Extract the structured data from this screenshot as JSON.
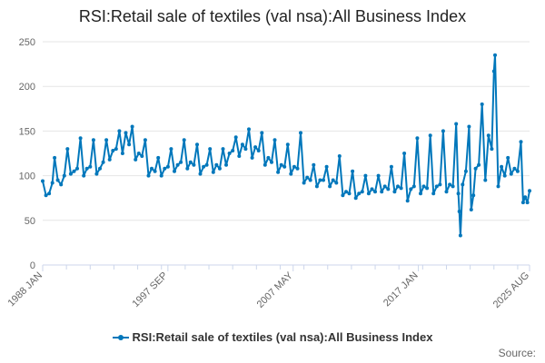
{
  "colors": {
    "series": "#0077BB",
    "grid": "#E6E6E6",
    "axis": "#CCD6EB",
    "text": "#666666"
  },
  "source_label": "Source:",
  "chart_data": {
    "type": "line",
    "title": "RSI:Retail sale of textiles (val nsa):All Business Index",
    "xlabel": "",
    "ylabel": "",
    "xlim": [
      "1988 JAN",
      "2025 AUG"
    ],
    "ylim": [
      0,
      250
    ],
    "y_ticks": [
      0,
      50,
      100,
      150,
      200,
      250
    ],
    "x_tick_labels": [
      "1988 JAN",
      "1997 SEP",
      "2007 MAY",
      "2017 JAN",
      "2025 AUG"
    ],
    "grid": true,
    "legend": "bottom",
    "series": [
      {
        "name": "RSI:Retail sale of textiles (val nsa):All Business Index",
        "points": [
          [
            "1988-01",
            94
          ],
          [
            "1988-04",
            78
          ],
          [
            "1988-07",
            80
          ],
          [
            "1988-10",
            92
          ],
          [
            "1988-12",
            120
          ],
          [
            "1989-03",
            95
          ],
          [
            "1989-06",
            90
          ],
          [
            "1989-09",
            100
          ],
          [
            "1989-12",
            130
          ],
          [
            "1990-03",
            102
          ],
          [
            "1990-06",
            105
          ],
          [
            "1990-09",
            108
          ],
          [
            "1990-12",
            142
          ],
          [
            "1991-03",
            100
          ],
          [
            "1991-06",
            108
          ],
          [
            "1991-09",
            110
          ],
          [
            "1991-12",
            140
          ],
          [
            "1992-03",
            102
          ],
          [
            "1992-06",
            108
          ],
          [
            "1992-09",
            115
          ],
          [
            "1992-12",
            140
          ],
          [
            "1993-03",
            118
          ],
          [
            "1993-06",
            128
          ],
          [
            "1993-09",
            130
          ],
          [
            "1993-12",
            150
          ],
          [
            "1994-03",
            125
          ],
          [
            "1994-06",
            148
          ],
          [
            "1994-09",
            135
          ],
          [
            "1994-12",
            155
          ],
          [
            "1995-03",
            118
          ],
          [
            "1995-06",
            125
          ],
          [
            "1995-09",
            122
          ],
          [
            "1995-12",
            140
          ],
          [
            "1996-03",
            100
          ],
          [
            "1996-06",
            108
          ],
          [
            "1996-09",
            105
          ],
          [
            "1996-12",
            120
          ],
          [
            "1997-03",
            100
          ],
          [
            "1997-06",
            108
          ],
          [
            "1997-09",
            110
          ],
          [
            "1997-12",
            130
          ],
          [
            "1998-03",
            105
          ],
          [
            "1998-06",
            112
          ],
          [
            "1998-09",
            115
          ],
          [
            "1998-12",
            140
          ],
          [
            "1999-03",
            108
          ],
          [
            "1999-06",
            115
          ],
          [
            "1999-09",
            112
          ],
          [
            "1999-12",
            135
          ],
          [
            "2000-03",
            102
          ],
          [
            "2000-06",
            110
          ],
          [
            "2000-09",
            112
          ],
          [
            "2000-12",
            130
          ],
          [
            "2001-03",
            104
          ],
          [
            "2001-06",
            112
          ],
          [
            "2001-09",
            108
          ],
          [
            "2001-12",
            130
          ],
          [
            "2002-03",
            112
          ],
          [
            "2002-06",
            125
          ],
          [
            "2002-09",
            128
          ],
          [
            "2002-12",
            143
          ],
          [
            "2003-03",
            122
          ],
          [
            "2003-06",
            135
          ],
          [
            "2003-09",
            130
          ],
          [
            "2003-12",
            152
          ],
          [
            "2004-03",
            120
          ],
          [
            "2004-06",
            132
          ],
          [
            "2004-09",
            128
          ],
          [
            "2004-12",
            148
          ],
          [
            "2005-03",
            112
          ],
          [
            "2005-06",
            120
          ],
          [
            "2005-09",
            115
          ],
          [
            "2005-12",
            140
          ],
          [
            "2006-03",
            104
          ],
          [
            "2006-06",
            112
          ],
          [
            "2006-09",
            110
          ],
          [
            "2006-12",
            135
          ],
          [
            "2007-03",
            102
          ],
          [
            "2007-06",
            110
          ],
          [
            "2007-09",
            108
          ],
          [
            "2007-12",
            148
          ],
          [
            "2008-03",
            92
          ],
          [
            "2008-06",
            98
          ],
          [
            "2008-09",
            95
          ],
          [
            "2008-12",
            112
          ],
          [
            "2009-03",
            88
          ],
          [
            "2009-06",
            95
          ],
          [
            "2009-09",
            95
          ],
          [
            "2009-12",
            110
          ],
          [
            "2010-03",
            88
          ],
          [
            "2010-06",
            95
          ],
          [
            "2010-09",
            92
          ],
          [
            "2010-12",
            122
          ],
          [
            "2011-03",
            78
          ],
          [
            "2011-06",
            82
          ],
          [
            "2011-09",
            80
          ],
          [
            "2011-12",
            105
          ],
          [
            "2012-03",
            75
          ],
          [
            "2012-06",
            80
          ],
          [
            "2012-09",
            82
          ],
          [
            "2012-12",
            100
          ],
          [
            "2013-03",
            80
          ],
          [
            "2013-06",
            85
          ],
          [
            "2013-09",
            82
          ],
          [
            "2013-12",
            100
          ],
          [
            "2014-03",
            82
          ],
          [
            "2014-06",
            88
          ],
          [
            "2014-09",
            85
          ],
          [
            "2014-12",
            110
          ],
          [
            "2015-03",
            82
          ],
          [
            "2015-06",
            88
          ],
          [
            "2015-09",
            86
          ],
          [
            "2015-12",
            125
          ],
          [
            "2016-03",
            72
          ],
          [
            "2016-06",
            85
          ],
          [
            "2016-09",
            88
          ],
          [
            "2016-12",
            142
          ],
          [
            "2017-03",
            80
          ],
          [
            "2017-06",
            88
          ],
          [
            "2017-09",
            86
          ],
          [
            "2017-12",
            145
          ],
          [
            "2018-03",
            80
          ],
          [
            "2018-06",
            88
          ],
          [
            "2018-09",
            90
          ],
          [
            "2018-12",
            150
          ],
          [
            "2019-03",
            82
          ],
          [
            "2019-06",
            90
          ],
          [
            "2019-09",
            88
          ],
          [
            "2019-12",
            158
          ],
          [
            "2020-02",
            80
          ],
          [
            "2020-03",
            60
          ],
          [
            "2020-04",
            33
          ],
          [
            "2020-06",
            90
          ],
          [
            "2020-09",
            105
          ],
          [
            "2020-12",
            155
          ],
          [
            "2021-02",
            62
          ],
          [
            "2021-04",
            78
          ],
          [
            "2021-06",
            108
          ],
          [
            "2021-09",
            112
          ],
          [
            "2021-12",
            180
          ],
          [
            "2022-03",
            95
          ],
          [
            "2022-06",
            145
          ],
          [
            "2022-09",
            130
          ],
          [
            "2022-11",
            217
          ],
          [
            "2022-12",
            235
          ],
          [
            "2023-03",
            88
          ],
          [
            "2023-06",
            110
          ],
          [
            "2023-09",
            100
          ],
          [
            "2023-12",
            120
          ],
          [
            "2024-03",
            102
          ],
          [
            "2024-06",
            108
          ],
          [
            "2024-09",
            105
          ],
          [
            "2024-12",
            138
          ],
          [
            "2025-02",
            70
          ],
          [
            "2025-04",
            76
          ],
          [
            "2025-06",
            70
          ],
          [
            "2025-08",
            83
          ]
        ]
      }
    ]
  }
}
